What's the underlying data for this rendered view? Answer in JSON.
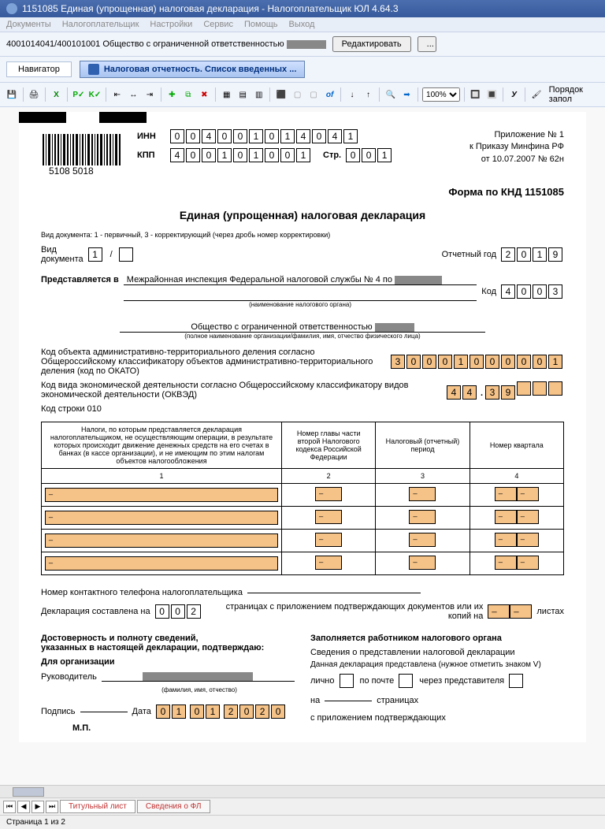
{
  "window": {
    "title": "1151085 Единая (упрощенная) налоговая декларация - Налогоплательщик ЮЛ 4.64.3"
  },
  "menu": [
    "Документы",
    "Налогоплательщик",
    "Настройки",
    "Сервис",
    "Помощь",
    "Выход"
  ],
  "orgbar": {
    "text": "4001014041/400101001 Общество с ограниченной ответственностью",
    "edit_btn": "Редактировать"
  },
  "nav": {
    "navigator": "Навигатор",
    "report": "Налоговая отчетность. Список введенных ..."
  },
  "toolbar": {
    "zoom": "100%",
    "order_label": "Порядок запол",
    "icons": [
      "save",
      "print",
      "excel",
      "p-green",
      "k-check",
      "sep",
      "arrow1",
      "arrow2",
      "arrow3",
      "sep",
      "plus",
      "copy",
      "del",
      "sep",
      "grid1",
      "grid2",
      "grid3",
      "sep",
      "m",
      "grey1",
      "grey2",
      "of",
      "sep",
      "down",
      "up",
      "sep",
      "find",
      "right",
      "sep",
      "zoom",
      "sep",
      "color1",
      "color2",
      "sep",
      "bold",
      "sep",
      "brush"
    ]
  },
  "doc": {
    "inn_label": "ИНН",
    "inn": [
      "0",
      "0",
      "4",
      "0",
      "0",
      "1",
      "0",
      "1",
      "4",
      "0",
      "4",
      "1"
    ],
    "kpp_label": "КПП",
    "kpp": [
      "4",
      "0",
      "0",
      "1",
      "0",
      "1",
      "0",
      "0",
      "1"
    ],
    "page_label": "Стр.",
    "page": [
      "0",
      "0",
      "1"
    ],
    "barcode_text": "5108 5018",
    "appendix": [
      "Приложение № 1",
      "к Приказу Минфина РФ",
      "от 10.07.2007 № 62н"
    ],
    "form_code": "Форма по КНД 1151085",
    "title": "Единая (упрощенная) налоговая декларация",
    "doc_type_note": "Вид документа: 1 - первичный, 3 - корректирующий (через дробь номер корректировки)",
    "doc_type_label": "Вид\nдокумента",
    "doc_type_val": "1",
    "report_year_label": "Отчетный год",
    "report_year": [
      "2",
      "0",
      "1",
      "9"
    ],
    "presented_label": "Представляется в",
    "presented_text": "Межрайонная инспекция Федеральной налоговой службы № 4 по",
    "presented_sublabel": "(наименование налогового органа)",
    "code_label": "Код",
    "code": [
      "4",
      "0",
      "0",
      "3"
    ],
    "org_name": "Общество с ограниченной ответственностью",
    "org_sublabel": "(полное наименование организации/фамилия, имя, отчество физического лица)",
    "okato_label": "Код объекта административно-территориального деления согласно Общероссийскому классификатору объектов административно-территориального деления (код по ОКАТО)",
    "okato": [
      "3",
      "0",
      "0",
      "0",
      "1",
      "0",
      "0",
      "0",
      "0",
      "0",
      "1"
    ],
    "okved_label": "Код вида экономической деятельности согласно Общероссийскому классификатору видов экономической деятельности (ОКВЭД)",
    "okved": [
      "4",
      "4",
      ".",
      "3",
      "9",
      "",
      "",
      ""
    ],
    "line_code": "Код строки 010",
    "table_headers": [
      "Налоги, по которым представляется декларация налогоплательщиком, не осуществляющим операции, в результате которых происходит движение денежных средств на его счетах в банках (в кассе организации), и не имеющим по этим налогам объектов налогообложения",
      "Номер главы части второй Налогового кодекса Российской Федерации",
      "Налоговый (отчетный) период",
      "Номер квартала"
    ],
    "table_cols": [
      "1",
      "2",
      "3",
      "4"
    ],
    "phone_label": "Номер контактного телефона налогоплательщика",
    "decl_pages_label1": "Декларация составлена на",
    "decl_pages": [
      "0",
      "0",
      "2"
    ],
    "decl_pages_label2": "страницах с приложением подтверждающих документов или их копий на",
    "decl_pages_label3": "листах",
    "left_section": {
      "title1": "Достоверность и полноту сведений,",
      "title2": "указанных в настоящей декларации, подтверждаю:",
      "for_org": "Для организации",
      "director": "Руководитель",
      "fio_sub": "(фамилия, имя, отчество)",
      "sign": "Подпись",
      "date": "Дата",
      "date_vals": [
        "0",
        "1",
        "0",
        "1",
        "2",
        "0",
        "2",
        "0"
      ],
      "mp": "М.П."
    },
    "right_section": {
      "title": "Заполняется работником налогового органа",
      "line1": "Сведения о представлении налоговой декларации",
      "line2": "Данная декларация представлена (нужное отметить знаком V)",
      "personally": "лично",
      "mail": "по почте",
      "via_rep": "через представителя",
      "on": "на",
      "pages": "страницах",
      "with_attach": "с приложением подтверждающих"
    }
  },
  "tabs": {
    "nav": [
      "⏮",
      "◀",
      "▶",
      "⏭"
    ],
    "items": [
      "Титульный лист",
      "Сведения о ФЛ"
    ]
  },
  "status": "Страница 1 из 2",
  "colors": {
    "orange": "#f5c288",
    "titlebar": "#4b6eaf",
    "panel": "#f0f4fb"
  }
}
